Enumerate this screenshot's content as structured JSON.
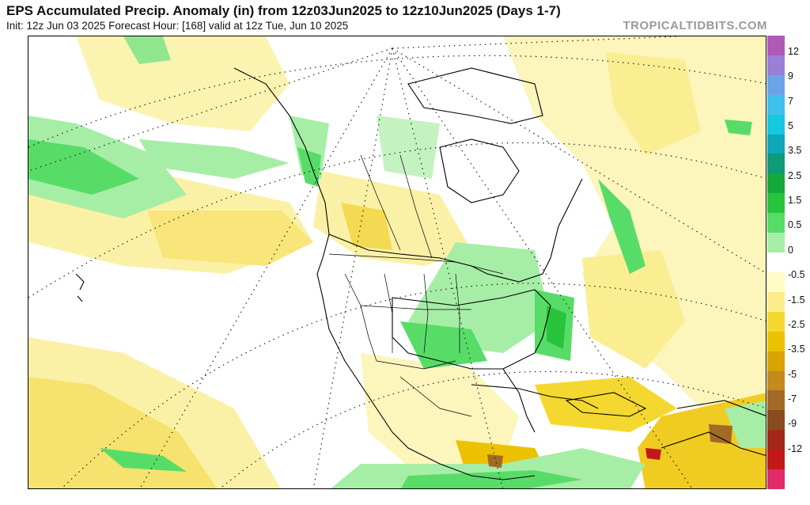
{
  "header": {
    "title": "EPS Accumulated Precip. Anomaly (in) from 12z03Jun2025 to 12z10Jun2025 (Days 1-7)",
    "subtitle": "Init: 12z Jun 03 2025   Forecast Hour: [168]   valid at 12z Tue, Jun 10 2025",
    "brand": "TROPICALTIDBITS.COM"
  },
  "colorbar": {
    "colors": [
      "#b05ab8",
      "#9a7fd6",
      "#6aa4e8",
      "#3fc0ec",
      "#14c8e0",
      "#0ea8b8",
      "#0f9a78",
      "#17a83a",
      "#28c43c",
      "#58dc68",
      "#a6eea6",
      "#ffffff",
      "#fffbc6",
      "#fbee88",
      "#f4d830",
      "#ecc200",
      "#d9a400",
      "#c58a1c",
      "#a36a26",
      "#8a4a20",
      "#a42818",
      "#c21818",
      "#e02a6a"
    ],
    "labels": [
      "12",
      "9",
      "7",
      "5",
      "3.5",
      "2.5",
      "1.5",
      "0.5",
      "0",
      "-0.5",
      "-1.5",
      "-2.5",
      "-3.5",
      "-5",
      "-7",
      "-9",
      "-12"
    ]
  }
}
